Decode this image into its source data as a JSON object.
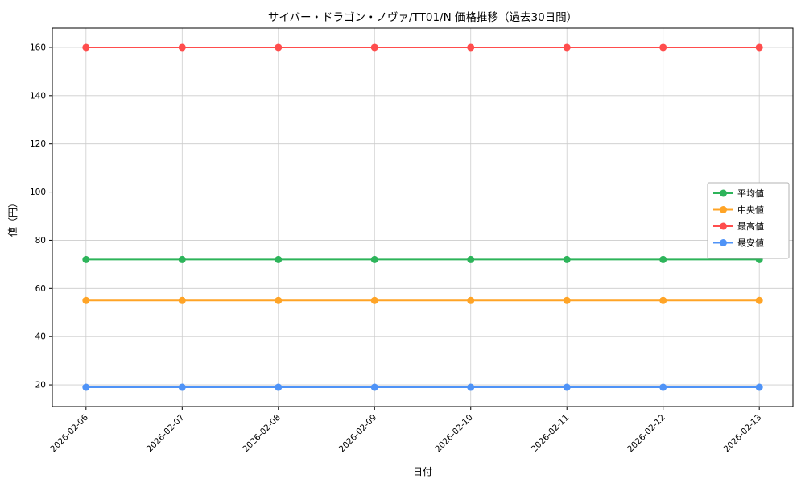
{
  "chart_data": {
    "type": "line",
    "title": "サイバー・ドラゴン・ノヴァ/TT01/N 価格推移（過去30日間）",
    "xlabel": "日付",
    "ylabel": "値（円）",
    "categories": [
      "2026-02-06",
      "2026-02-07",
      "2026-02-08",
      "2026-02-09",
      "2026-02-10",
      "2026-02-11",
      "2026-02-12",
      "2026-02-13"
    ],
    "series": [
      {
        "name": "平均値",
        "color": "#2db45a",
        "values": [
          72,
          72,
          72,
          72,
          72,
          72,
          72,
          72
        ]
      },
      {
        "name": "中央値",
        "color": "#ffa426",
        "values": [
          55,
          55,
          55,
          55,
          55,
          55,
          55,
          55
        ]
      },
      {
        "name": "最高値",
        "color": "#ff4d4d",
        "values": [
          160,
          160,
          160,
          160,
          160,
          160,
          160,
          160
        ]
      },
      {
        "name": "最安値",
        "color": "#4f93f7",
        "values": [
          19,
          19,
          19,
          19,
          19,
          19,
          19,
          19
        ]
      }
    ],
    "yticks": [
      20,
      40,
      60,
      80,
      100,
      120,
      140,
      160
    ],
    "ylim": [
      11,
      168
    ],
    "grid": true,
    "legend_position": "center-right",
    "marker": "circle",
    "styles": {
      "grid_color": "#cccccc",
      "axis_color": "#000000",
      "legend_border_color": "#b3b3b3",
      "legend_bg_color": "#ffffff",
      "text_color": "#000000"
    }
  }
}
